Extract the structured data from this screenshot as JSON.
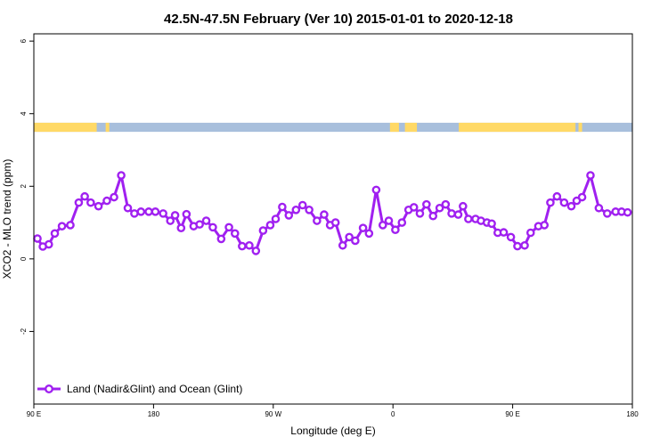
{
  "chart_data": {
    "type": "line",
    "title": "42.5N-47.5N February (Ver 10)   2015-01-01 to 2020-12-18",
    "xlabel": "Longitude (deg E)",
    "ylabel": "XCO2 - MLO trend (ppm)",
    "xlim": [
      0,
      100
    ],
    "ylim": [
      -4,
      6.2
    ],
    "x_ticks": [
      {
        "value": 0,
        "label": "90 E"
      },
      {
        "value": 20,
        "label": "180"
      },
      {
        "value": 40,
        "label": "90 W"
      },
      {
        "value": 60,
        "label": "0"
      },
      {
        "value": 80,
        "label": "90 E"
      },
      {
        "value": 100,
        "label": "180"
      }
    ],
    "y_ticks": [
      {
        "value": -2,
        "label": "-2"
      },
      {
        "value": 0,
        "label": "0"
      },
      {
        "value": 2,
        "label": "2"
      },
      {
        "value": 4,
        "label": "4"
      },
      {
        "value": 6,
        "label": "6"
      }
    ],
    "land_ocean_band": {
      "y_range": [
        3.5,
        3.75
      ],
      "land_color": "#ffd966",
      "ocean_color": "#a8bfdc",
      "land_segments": [
        [
          0,
          10.5
        ],
        [
          12,
          12.6
        ],
        [
          59.5,
          61
        ],
        [
          62,
          64
        ],
        [
          71,
          90.5
        ],
        [
          91,
          91.6
        ]
      ]
    },
    "series": [
      {
        "name": "Land (Nadir&Glint) and Ocean (Glint)",
        "color": "#a020f0",
        "x": [
          0.6,
          1.5,
          2.5,
          3.5,
          4.7,
          6.1,
          7.5,
          8.5,
          9.5,
          10.8,
          12.2,
          13.4,
          14.6,
          15.7,
          16.8,
          17.9,
          19.2,
          20.3,
          21.6,
          22.8,
          23.6,
          24.6,
          25.5,
          26.7,
          27.7,
          28.8,
          29.9,
          31.3,
          32.6,
          33.6,
          34.8,
          36.0,
          37.1,
          38.3,
          39.5,
          40.4,
          41.5,
          42.6,
          43.8,
          44.9,
          46.0,
          47.3,
          48.5,
          49.5,
          50.4,
          51.6,
          52.7,
          53.7,
          55.0,
          56.0,
          57.2,
          58.3,
          59.3,
          60.4,
          61.5,
          62.6,
          63.5,
          64.5,
          65.6,
          66.7,
          67.8,
          68.8,
          69.8,
          70.9,
          71.7,
          72.6,
          73.8,
          74.7,
          75.7,
          76.5,
          77.5,
          78.5,
          79.7,
          80.8,
          82.0,
          83.0,
          84.3,
          85.3,
          86.3,
          87.4,
          88.6,
          89.8,
          90.7,
          91.6,
          93.0,
          94.4,
          95.8,
          97.2,
          98.2,
          99.2
        ],
        "y": [
          0.56,
          0.34,
          0.4,
          0.7,
          0.9,
          0.93,
          1.55,
          1.72,
          1.55,
          1.45,
          1.6,
          1.7,
          2.3,
          1.4,
          1.25,
          1.3,
          1.3,
          1.3,
          1.25,
          1.05,
          1.2,
          0.85,
          1.23,
          0.9,
          0.95,
          1.05,
          0.87,
          0.55,
          0.87,
          0.7,
          0.35,
          0.37,
          0.22,
          0.78,
          0.93,
          1.1,
          1.43,
          1.2,
          1.35,
          1.48,
          1.35,
          1.05,
          1.22,
          0.93,
          1.0,
          0.37,
          0.6,
          0.5,
          0.85,
          0.7,
          1.9,
          0.93,
          1.05,
          0.8,
          1.0,
          1.35,
          1.42,
          1.25,
          1.5,
          1.18,
          1.4,
          1.5,
          1.25,
          1.22,
          1.45,
          1.1,
          1.1,
          1.05,
          1.0,
          0.97,
          0.72,
          0.73,
          0.6,
          0.35,
          0.37,
          0.72,
          0.9,
          0.93,
          1.55,
          1.72,
          1.55,
          1.45,
          1.6,
          1.7,
          2.3,
          1.4,
          1.25,
          1.3,
          1.3,
          1.28
        ]
      }
    ],
    "legend": {
      "position": "bottom-left"
    },
    "grid": false
  }
}
